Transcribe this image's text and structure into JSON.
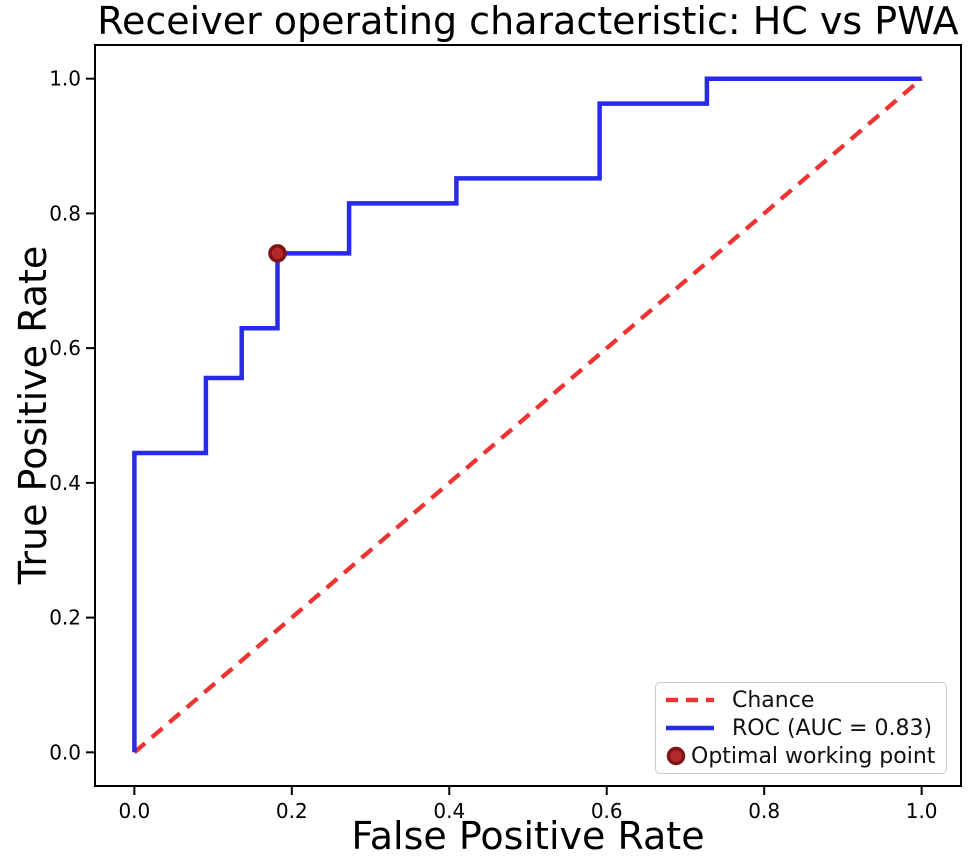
{
  "chart_data": {
    "type": "line",
    "title": "Receiver operating characteristic: HC vs PWA",
    "xlabel": "False Positive Rate",
    "ylabel": "True Positive Rate",
    "xlim": [
      -0.05,
      1.05
    ],
    "ylim": [
      -0.05,
      1.05
    ],
    "xticks": [
      0.0,
      0.2,
      0.4,
      0.6,
      0.8,
      1.0
    ],
    "yticks": [
      0.0,
      0.2,
      0.4,
      0.6,
      0.8,
      1.0
    ],
    "grid": false,
    "auc": 0.83,
    "legend_position": "lower-right",
    "axis_color": "#000000",
    "series": [
      {
        "name": "Chance",
        "style": "dashed",
        "color": "#ee3333",
        "points": [
          [
            0,
            0
          ],
          [
            1,
            1
          ]
        ]
      },
      {
        "name": "ROC (AUC = 0.83)",
        "style": "step",
        "color": "#2929e8",
        "points": [
          [
            0,
            0
          ],
          [
            0,
            0.4444
          ],
          [
            0.0909,
            0.4444
          ],
          [
            0.0909,
            0.5556
          ],
          [
            0.1364,
            0.5556
          ],
          [
            0.1364,
            0.6296
          ],
          [
            0.1818,
            0.6296
          ],
          [
            0.1818,
            0.7407
          ],
          [
            0.2727,
            0.7407
          ],
          [
            0.2727,
            0.8148
          ],
          [
            0.4091,
            0.8148
          ],
          [
            0.4091,
            0.8519
          ],
          [
            0.5909,
            0.8519
          ],
          [
            0.5909,
            0.963
          ],
          [
            0.7273,
            0.963
          ],
          [
            0.7273,
            1.0
          ],
          [
            1.0,
            1.0
          ]
        ]
      },
      {
        "name": "Optimal working point",
        "style": "marker",
        "color": "#b22929",
        "edge_color": "#7f1414",
        "points": [
          [
            0.1818,
            0.7407
          ]
        ]
      }
    ]
  },
  "legend": {
    "items": [
      {
        "label": "Chance",
        "swatch": "dashed",
        "color": "#ee3333"
      },
      {
        "label": "ROC (AUC = 0.83)",
        "swatch": "solid",
        "color": "#2929e8"
      },
      {
        "label": "Optimal working point",
        "swatch": "marker",
        "color": "#b22929",
        "edge_color": "#7f1414"
      }
    ]
  }
}
